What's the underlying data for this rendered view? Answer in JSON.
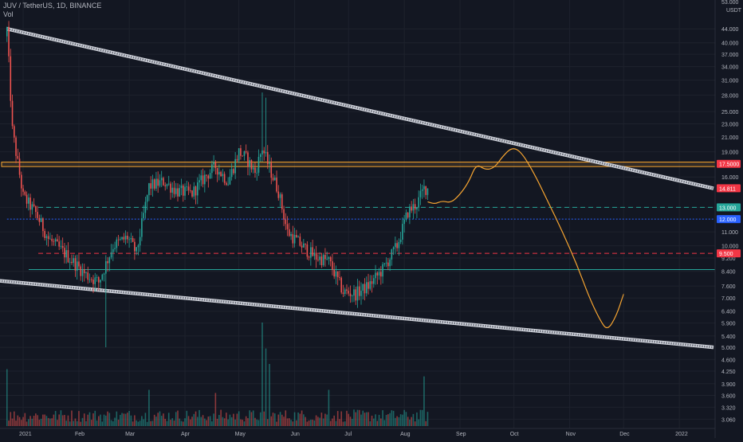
{
  "legend": {
    "symbol_line": "JUV / TetherUS, 1D, BINANCE",
    "volume_label": "Vol"
  },
  "price_axis": {
    "currency": "USDT",
    "top_label": "53.000",
    "ticks": [
      "44.000",
      "40.000",
      "37.000",
      "34.000",
      "31.000",
      "28.000",
      "25.000",
      "23.000",
      "21.000",
      "19.000",
      "17.500",
      "16.000",
      "13.000",
      "11.000",
      "10.000",
      "9.200",
      "8.400",
      "7.600",
      "7.000",
      "6.400",
      "5.900",
      "5.400",
      "5.000",
      "4.600",
      "4.250",
      "3.900",
      "3.600",
      "3.320",
      "3.060"
    ]
  },
  "price_badges": [
    {
      "label": "14.811",
      "color": "#f23645"
    },
    {
      "label": "17.5000",
      "color": "#f23645"
    },
    {
      "label": "13.000",
      "color": "#26a69a"
    },
    {
      "label": "12.000",
      "color": "#2962ff"
    },
    {
      "label": "9.500",
      "color": "#f23645"
    }
  ],
  "time_axis": [
    "2021",
    "Feb",
    "Mar",
    "Apr",
    "May",
    "Jun",
    "Jul",
    "Aug",
    "Sep",
    "Oct",
    "Nov",
    "Dec",
    "2022"
  ],
  "chart_data": {
    "type": "candlestick",
    "symbol": "JUV / TetherUS",
    "interval": "1D",
    "exchange": "BINANCE",
    "quote_currency": "USDT",
    "price_scale": "log",
    "x_range": [
      "2020-12-20",
      "2022-01-20"
    ],
    "y_range": [
      3.0,
      53.0
    ],
    "colors": {
      "up": "#26a69a",
      "down": "#ef5350",
      "background": "#131722",
      "projection": "#f7a531"
    },
    "anchors": [
      [
        "2020-12-23",
        44.0
      ],
      [
        "2020-12-26",
        22.0
      ],
      [
        "2021-01-01",
        14.0
      ],
      [
        "2021-01-08",
        12.5
      ],
      [
        "2021-01-15",
        10.5
      ],
      [
        "2021-01-25",
        9.4
      ],
      [
        "2021-02-05",
        8.2
      ],
      [
        "2021-02-12",
        7.8
      ],
      [
        "2021-02-20",
        10.0
      ],
      [
        "2021-02-28",
        10.6
      ],
      [
        "2021-03-05",
        9.5
      ],
      [
        "2021-03-12",
        15.0
      ],
      [
        "2021-03-20",
        15.5
      ],
      [
        "2021-03-28",
        14.5
      ],
      [
        "2021-04-05",
        14.3
      ],
      [
        "2021-04-12",
        16.0
      ],
      [
        "2021-04-18",
        17.2
      ],
      [
        "2021-04-25",
        15.5
      ],
      [
        "2021-05-01",
        19.0
      ],
      [
        "2021-05-05",
        18.2
      ],
      [
        "2021-05-10",
        16.5
      ],
      [
        "2021-05-14",
        19.5
      ],
      [
        "2021-05-18",
        17.0
      ],
      [
        "2021-05-23",
        14.5
      ],
      [
        "2021-05-28",
        11.0
      ],
      [
        "2021-06-05",
        10.0
      ],
      [
        "2021-06-12",
        9.3
      ],
      [
        "2021-06-20",
        9.0
      ],
      [
        "2021-06-28",
        7.3
      ],
      [
        "2021-07-05",
        7.2
      ],
      [
        "2021-07-12",
        7.6
      ],
      [
        "2021-07-20",
        8.5
      ],
      [
        "2021-07-28",
        10.0
      ],
      [
        "2021-08-03",
        12.6
      ],
      [
        "2021-08-08",
        13.3
      ],
      [
        "2021-08-12",
        14.8
      ],
      [
        "2021-08-14",
        14.8
      ]
    ],
    "volume_scale_note": "relative",
    "volume_spikes": [
      [
        "2020-12-23",
        0.55
      ],
      [
        "2021-03-12",
        0.35
      ],
      [
        "2021-04-18",
        0.32
      ],
      [
        "2021-05-14",
        1.0
      ],
      [
        "2021-05-16",
        0.75
      ],
      [
        "2021-05-18",
        0.6
      ],
      [
        "2021-06-20",
        0.35
      ],
      [
        "2021-08-12",
        0.48
      ]
    ],
    "levels": [
      {
        "price": 17.5,
        "style": "band",
        "color": "#f7a531"
      },
      {
        "price": 13.0,
        "style": "dashed",
        "color": "#26a69a"
      },
      {
        "price": 12.0,
        "style": "dotted",
        "color": "#2962ff"
      },
      {
        "price": 9.5,
        "style": "dashed",
        "color": "#f23645"
      },
      {
        "price": 8.5,
        "style": "solid",
        "color": "#26a69a"
      }
    ],
    "trendlines": [
      {
        "from": [
          "2020-12-23",
          44.0
        ],
        "to": [
          "2022-01-20",
          14.8
        ]
      },
      {
        "from": [
          "2020-12-16",
          7.9
        ],
        "to": [
          "2022-01-20",
          5.0
        ]
      }
    ],
    "projection": [
      [
        "2021-08-14",
        13.5
      ],
      [
        "2021-08-18",
        13.3
      ],
      [
        "2021-08-22",
        13.6
      ],
      [
        "2021-08-27",
        13.4
      ],
      [
        "2021-09-01",
        14.2
      ],
      [
        "2021-09-06",
        15.5
      ],
      [
        "2021-09-10",
        17.5
      ],
      [
        "2021-09-15",
        16.8
      ],
      [
        "2021-09-20",
        17.0
      ],
      [
        "2021-09-25",
        18.5
      ],
      [
        "2021-09-30",
        19.6
      ],
      [
        "2021-10-05",
        19.0
      ],
      [
        "2021-10-12",
        16.5
      ],
      [
        "2021-10-20",
        13.5
      ],
      [
        "2021-10-28",
        11.0
      ],
      [
        "2021-11-05",
        8.8
      ],
      [
        "2021-11-12",
        7.0
      ],
      [
        "2021-11-18",
        6.0
      ],
      [
        "2021-11-22",
        5.6
      ],
      [
        "2021-11-27",
        6.2
      ],
      [
        "2021-12-01",
        7.2
      ]
    ]
  }
}
